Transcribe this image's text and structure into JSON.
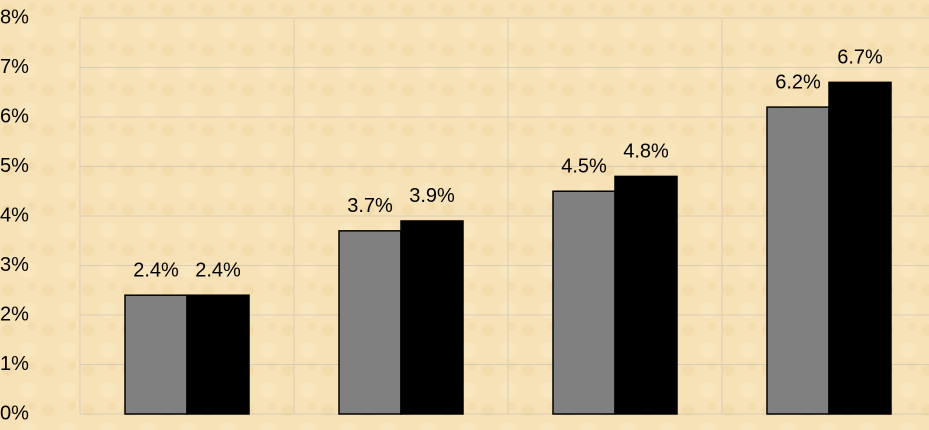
{
  "chart_data": {
    "type": "bar",
    "categories": [
      null,
      null,
      null,
      null
    ],
    "series": [
      {
        "color": "#808080",
        "values": [
          2.4,
          3.7,
          4.5,
          6.2
        ],
        "value_labels": [
          "2.4%",
          "3.7%",
          "4.5%",
          "6.2%"
        ]
      },
      {
        "color": "#000000",
        "values": [
          2.4,
          3.9,
          4.8,
          6.7
        ],
        "value_labels": [
          "2.4%",
          "3.9%",
          "4.8%",
          "6.7%"
        ]
      }
    ],
    "ylim": [
      0,
      8
    ],
    "yticks": [
      {
        "value": 0,
        "label": "0%"
      },
      {
        "value": 1,
        "label": "1%"
      },
      {
        "value": 2,
        "label": "2%"
      },
      {
        "value": 3,
        "label": "3%"
      },
      {
        "value": 4,
        "label": "4%"
      },
      {
        "value": 5,
        "label": "5%"
      },
      {
        "value": 6,
        "label": "6%"
      },
      {
        "value": 7,
        "label": "7%"
      },
      {
        "value": 8,
        "label": "8%"
      }
    ],
    "grid": true
  }
}
